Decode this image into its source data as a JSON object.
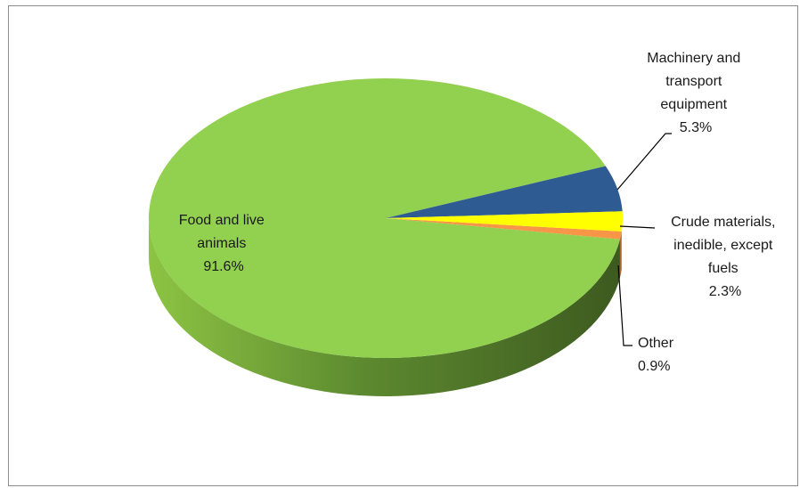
{
  "chart_data": {
    "type": "pie",
    "style": "3d",
    "title": "",
    "slices": [
      {
        "label": "Food and live animals",
        "value": 91.6,
        "display": "91.6%",
        "color": "#92d050"
      },
      {
        "label": "Machinery and transport equipment",
        "value": 5.3,
        "display": "5.3%",
        "color": "#2e5c92"
      },
      {
        "label": "Crude materials, inedible, except fuels",
        "value": 2.3,
        "display": "2.3%",
        "color": "#ffff00"
      },
      {
        "label": "Other",
        "value": 0.9,
        "display": "0.9%",
        "color": "#f79646"
      }
    ],
    "legend": "none"
  }
}
